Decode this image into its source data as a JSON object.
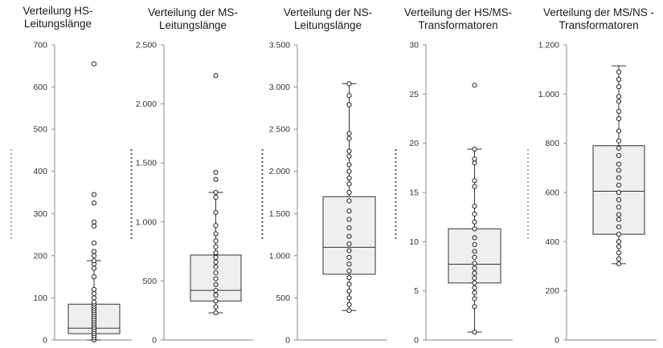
{
  "chart_data": [
    {
      "type": "box",
      "title": "Verteilung HS-\nLeitungslänge",
      "ylim": [
        0,
        700
      ],
      "yticks": [
        0,
        100,
        200,
        300,
        400,
        500,
        600,
        700
      ],
      "tick_labels": [
        "0",
        "100",
        "200",
        "300",
        "400",
        "500",
        "600",
        "700"
      ],
      "box": {
        "whisker_low": 0,
        "q1": 15,
        "median": 28,
        "q3": 85,
        "whisker_high": 188
      },
      "points": [
        0,
        5,
        10,
        15,
        20,
        25,
        30,
        35,
        40,
        45,
        50,
        55,
        60,
        65,
        70,
        75,
        80,
        85,
        90,
        100,
        110,
        120,
        150,
        170,
        180,
        188,
        200,
        210,
        230,
        270,
        280,
        325,
        345,
        655
      ]
    },
    {
      "type": "box",
      "title": "Verteilung der MS-\nLeitungslänge",
      "ylim": [
        0,
        2500
      ],
      "yticks": [
        0,
        500,
        1000,
        1500,
        2000,
        2500
      ],
      "tick_labels": [
        "0",
        "500",
        "1.000",
        "1.500",
        "2.000",
        "2.500"
      ],
      "box": {
        "whisker_low": 230,
        "q1": 330,
        "median": 420,
        "q3": 720,
        "whisker_high": 1250
      },
      "points": [
        230,
        280,
        330,
        380,
        420,
        470,
        520,
        570,
        620,
        660,
        700,
        740,
        790,
        840,
        900,
        970,
        1080,
        1210,
        1250,
        1360,
        1420,
        2240
      ]
    },
    {
      "type": "box",
      "title": "Verteilung der NS-\nLeitungslänge",
      "ylim": [
        0,
        3500
      ],
      "yticks": [
        0,
        500,
        1000,
        1500,
        2000,
        2500,
        3000,
        3500
      ],
      "tick_labels": [
        "0",
        "500",
        "1.000",
        "1.500",
        "2.000",
        "2.500",
        "3.000",
        "3.500"
      ],
      "box": {
        "whisker_low": 350,
        "q1": 780,
        "median": 1100,
        "q3": 1700,
        "whisker_high": 3040
      },
      "points": [
        350,
        420,
        500,
        580,
        660,
        740,
        820,
        900,
        980,
        1060,
        1140,
        1230,
        1330,
        1430,
        1530,
        1650,
        1750,
        1850,
        1920,
        2000,
        2080,
        2180,
        2240,
        2390,
        2450,
        2790,
        2900,
        3040
      ]
    },
    {
      "type": "box",
      "title": "Verteilung der HS/MS-\nTransformatoren",
      "ylim": [
        0,
        30
      ],
      "yticks": [
        0,
        5,
        10,
        15,
        20,
        25,
        30
      ],
      "tick_labels": [
        "0",
        "5",
        "10",
        "15",
        "20",
        "25",
        "30"
      ],
      "box": {
        "whisker_low": 0.8,
        "q1": 5.8,
        "median": 7.7,
        "q3": 11.3,
        "whisker_high": 19.4
      },
      "points": [
        0.8,
        3.4,
        4.2,
        4.8,
        5.3,
        5.8,
        6.3,
        6.8,
        7.3,
        7.8,
        8.4,
        9.0,
        9.7,
        10.4,
        11.3,
        12.0,
        12.8,
        13.6,
        15.6,
        16.2,
        18.0,
        18.4,
        19.4,
        25.9
      ]
    },
    {
      "type": "box",
      "title": "Verteilung der MS/NS -\nTransformatoren",
      "ylim": [
        0,
        1200
      ],
      "yticks": [
        0,
        200,
        400,
        600,
        800,
        1000,
        1200
      ],
      "tick_labels": [
        "0",
        "200",
        "400",
        "600",
        "800",
        "1.000",
        "1.200"
      ],
      "box": {
        "whisker_low": 310,
        "q1": 430,
        "median": 605,
        "q3": 790,
        "whisker_high": 1115
      },
      "points": [
        310,
        330,
        355,
        380,
        400,
        430,
        460,
        490,
        510,
        540,
        570,
        600,
        630,
        660,
        690,
        715,
        750,
        780,
        810,
        850,
        900,
        930,
        970,
        990,
        1030,
        1060,
        1090
      ]
    }
  ]
}
